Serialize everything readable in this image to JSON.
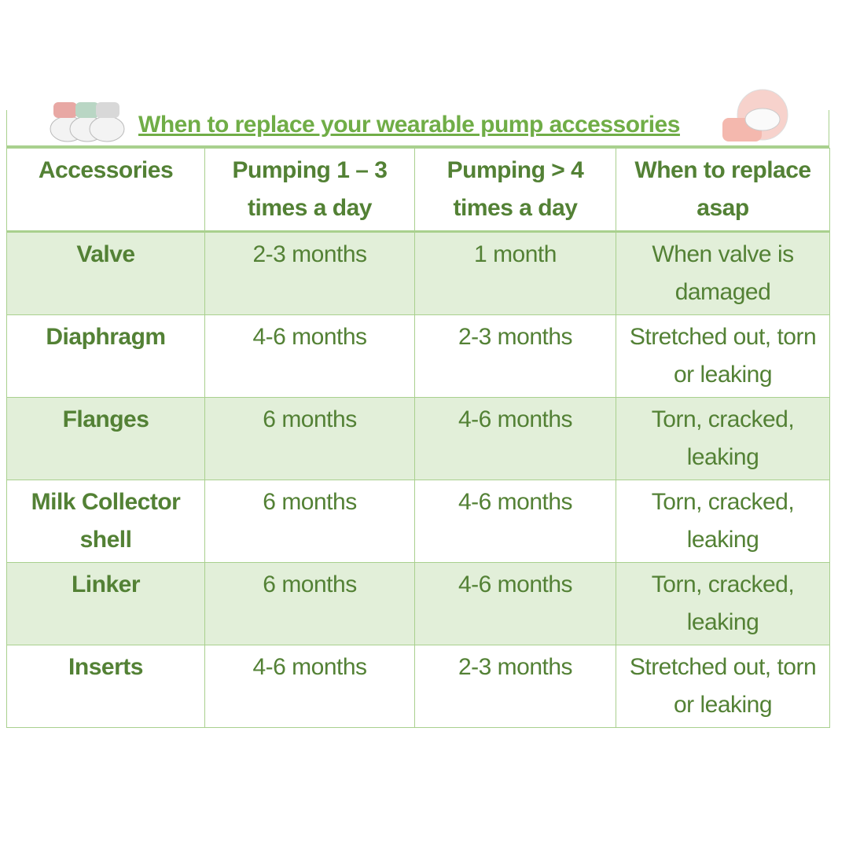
{
  "title": "When to replace your wearable pump accessories",
  "table": {
    "header": [
      "Accessories",
      "Pumping 1 – 3 times a day",
      "Pumping > 4 times a day",
      "When to replace asap"
    ],
    "rows": [
      [
        "Valve",
        "2-3 months",
        "1 month",
        "When valve is damaged"
      ],
      [
        "Diaphragm",
        "4-6 months",
        "2-3 months",
        "Stretched out, torn or leaking"
      ],
      [
        "Flanges",
        "6 months",
        "4-6 months",
        "Torn, cracked, leaking"
      ],
      [
        "Milk Collector shell",
        "6 months",
        "4-6 months",
        "Torn, cracked, leaking"
      ],
      [
        "Linker",
        "6 months",
        "4-6 months",
        "Torn, cracked, leaking"
      ],
      [
        "Inserts",
        "4-6 months",
        "2-3 months",
        "Stretched out, torn or leaking"
      ]
    ]
  }
}
